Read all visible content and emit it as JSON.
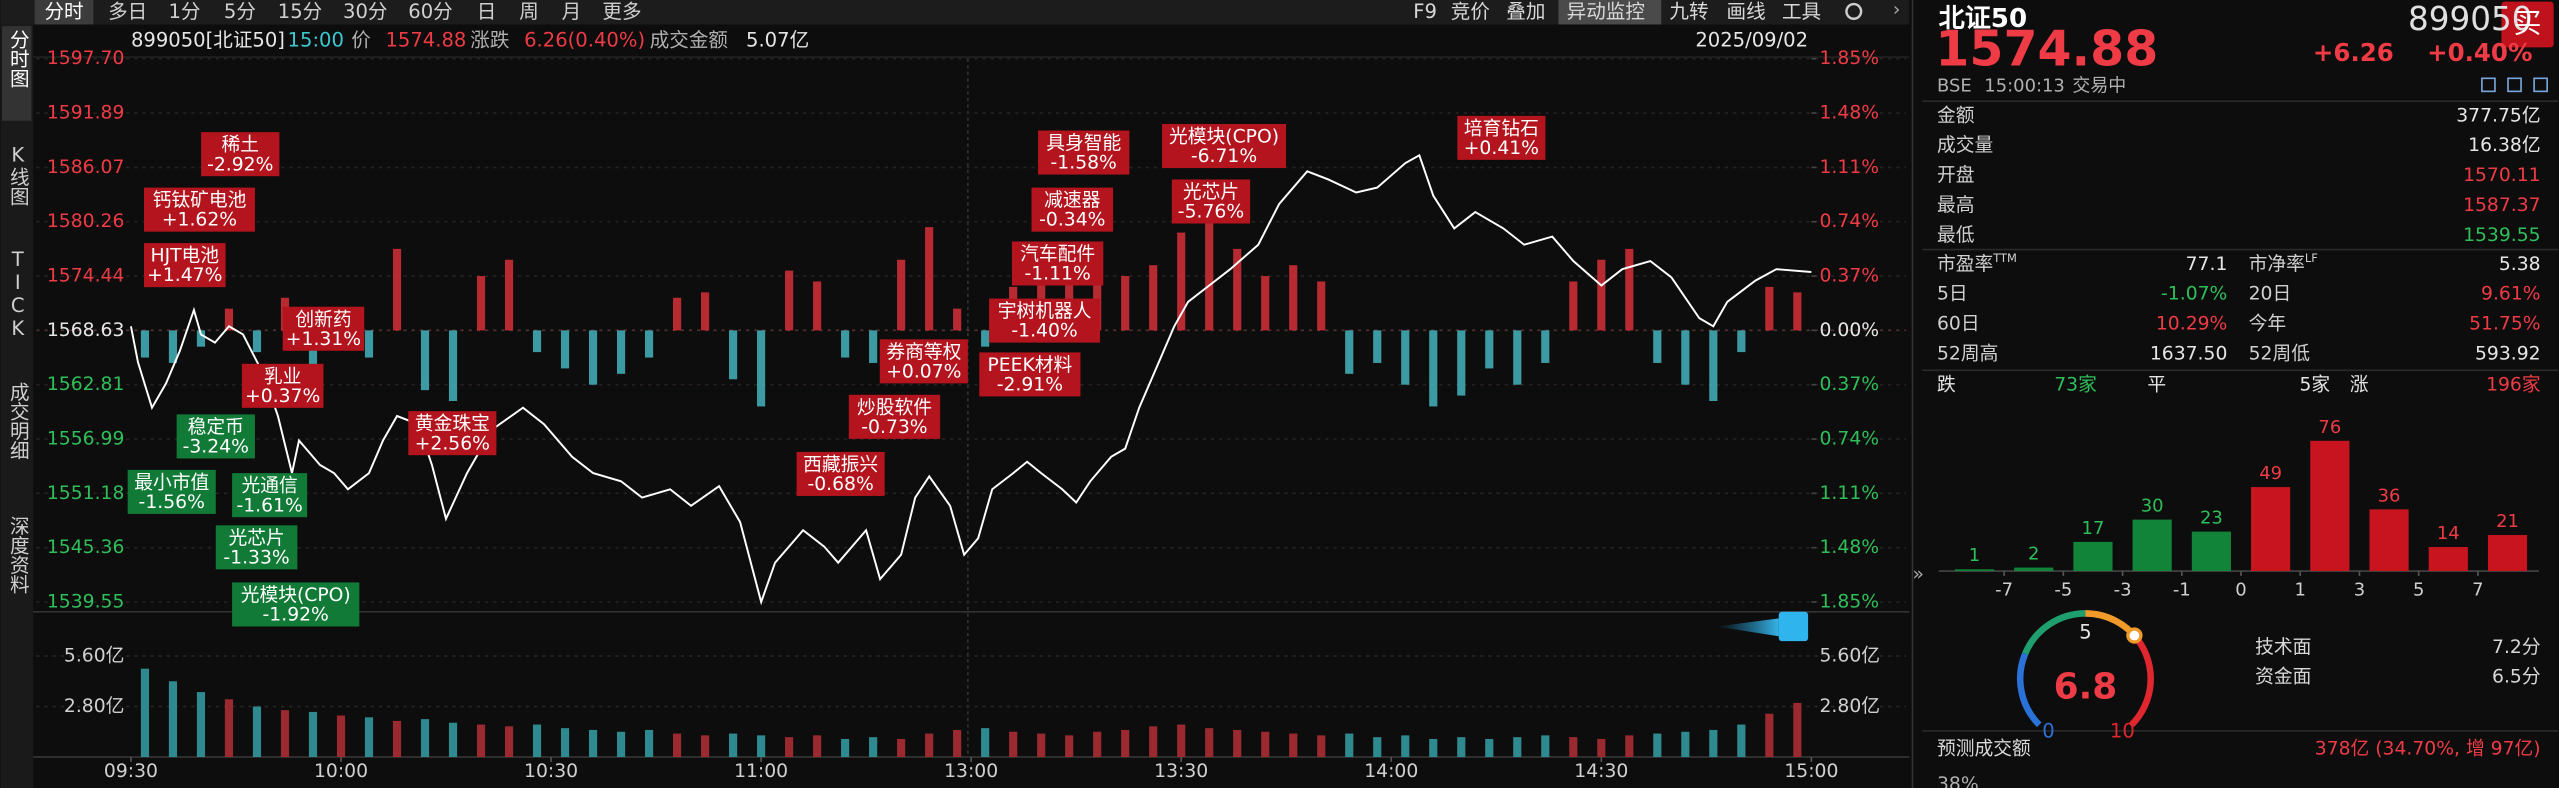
{
  "toolbar": {
    "tabs": [
      "分时",
      "多日",
      "1分",
      "5分",
      "15分",
      "30分",
      "60分",
      "日",
      "周",
      "月",
      "更多"
    ],
    "tools": [
      "F9",
      "竞价",
      "叠加",
      "异动监控",
      "九转",
      "画线",
      "工具"
    ]
  },
  "sidebar": [
    "分时图",
    "K线图",
    "TICK",
    "成交明细",
    "深度资料"
  ],
  "info_bar": {
    "code": "899050[北证50]",
    "time": "15:00",
    "price_label": "价",
    "price": "1574.88",
    "change_label": "涨跌",
    "change": "6.26(0.40%)",
    "amount_label": "成交金额",
    "amount": "5.07亿",
    "date": "2025/09/02"
  },
  "chart": {
    "type": "line",
    "xlim": [
      0,
      240
    ],
    "xticks": [
      {
        "value": 0,
        "label": "09:30"
      },
      {
        "value": 30,
        "label": "10:00"
      },
      {
        "value": 60,
        "label": "10:30"
      },
      {
        "value": 90,
        "label": "11:00"
      },
      {
        "value": 120,
        "label": "13:00"
      },
      {
        "value": 150,
        "label": "13:30"
      },
      {
        "value": 180,
        "label": "14:00"
      },
      {
        "value": 210,
        "label": "14:30"
      },
      {
        "value": 240,
        "label": "15:00"
      }
    ],
    "ylim": [
      1539.55,
      1597.7
    ],
    "yticks": [
      {
        "value": 1597.7,
        "label": "1597.70"
      },
      1591.89,
      1586.07,
      1580.26,
      1574.44,
      1568.63,
      1562.81,
      1556.99,
      1551.18,
      1545.36,
      1539.55
    ],
    "y2lim": [
      -1.85,
      1.85
    ],
    "y2ticks": [
      {
        "value": 1.85,
        "label": "1.85%"
      },
      {
        "value": 1.48,
        "label": "1.48%"
      },
      {
        "value": 1.11,
        "label": "1.11%"
      },
      {
        "value": 0.74,
        "label": "0.74%"
      },
      {
        "value": 0.37,
        "label": "0.37%"
      },
      {
        "value": 0,
        "label": "0.00%"
      },
      {
        "value": -0.37,
        "label": "0.37%"
      },
      {
        "value": -0.74,
        "label": "0.74%"
      },
      {
        "value": -1.11,
        "label": "1.11%"
      },
      {
        "value": -1.48,
        "label": "1.48%"
      },
      {
        "value": -1.85,
        "label": "1.85%"
      }
    ],
    "grid": true,
    "series": [
      {
        "color": "#ffffff",
        "x": [
          0,
          1,
          3,
          5,
          7,
          9,
          10,
          12,
          14,
          16,
          19,
          21,
          23,
          24,
          27,
          29,
          31,
          34,
          36,
          38,
          41,
          43,
          45,
          48,
          50,
          52,
          56,
          59,
          63,
          66,
          70,
          73,
          77,
          80,
          84,
          87,
          90,
          92,
          96,
          99,
          101,
          105,
          107,
          110,
          112,
          114,
          117,
          119,
          121,
          123,
          126,
          128,
          130,
          133,
          135,
          137,
          140,
          142,
          144,
          147,
          149,
          151,
          154,
          157,
          161,
          164,
          168,
          171,
          175,
          178,
          182,
          184,
          186,
          189,
          192,
          196,
          199,
          203,
          206,
          210,
          213,
          217,
          220,
          224,
          226,
          228,
          232,
          235,
          240
        ],
        "values": [
          1569.07,
          1565.22,
          1560.34,
          1562.95,
          1566.45,
          1570.81,
          1568.19,
          1567.32,
          1569.07,
          1568.19,
          1563.83,
          1559.46,
          1553.35,
          1556.84,
          1554.22,
          1553.35,
          1551.61,
          1553.35,
          1556.84,
          1559.46,
          1558.59,
          1554.22,
          1548.46,
          1553.35,
          1555.97,
          1558.24,
          1560.34,
          1558.59,
          1555.1,
          1553.35,
          1552.48,
          1550.73,
          1551.61,
          1549.86,
          1551.95,
          1548.11,
          1539.55,
          1543.75,
          1547.24,
          1545.49,
          1543.75,
          1547.24,
          1542.0,
          1544.62,
          1550.73,
          1553.0,
          1549.86,
          1544.62,
          1546.37,
          1551.61,
          1553.35,
          1554.57,
          1553.35,
          1551.61,
          1550.21,
          1552.48,
          1555.1,
          1555.97,
          1560.34,
          1565.57,
          1569.07,
          1571.68,
          1573.43,
          1575.18,
          1577.8,
          1582.16,
          1585.65,
          1584.78,
          1583.38,
          1583.91,
          1586.53,
          1587.37,
          1583.03,
          1579.54,
          1581.29,
          1579.54,
          1577.8,
          1578.67,
          1576.05,
          1573.43,
          1575.18,
          1576.05,
          1574.3,
          1569.94,
          1569.07,
          1571.68,
          1573.95,
          1575.18,
          1574.88
        ]
      }
    ],
    "breadth": {
      "ylim": [
        -100,
        100
      ],
      "up_color": "#d6303a",
      "down_color": "#45b5bd",
      "values": [
        -10,
        -12,
        -6,
        8,
        -8,
        12,
        -14,
        6,
        -10,
        30,
        -22,
        -26,
        20,
        26,
        -8,
        -14,
        -20,
        -16,
        -10,
        12,
        14,
        -18,
        -28,
        22,
        18,
        -10,
        -12,
        26,
        38,
        8,
        -6,
        16,
        22,
        26,
        18,
        20,
        24,
        36,
        42,
        30,
        20,
        24,
        18,
        -16,
        -12,
        -20,
        -28,
        -24,
        -14,
        -20,
        -12,
        18,
        26,
        30,
        -12,
        -20,
        -26,
        -8,
        16,
        14
      ]
    },
    "volume": {
      "ylim": [
        0,
        7.6
      ],
      "yticks": [
        {
          "value": 5.6,
          "label": "5.60亿"
        },
        {
          "value": 2.8,
          "label": "2.80亿"
        }
      ],
      "values": [
        4.9,
        4.2,
        3.6,
        3.2,
        2.8,
        2.6,
        2.5,
        2.3,
        2.2,
        2.0,
        2.1,
        1.9,
        1.8,
        1.7,
        1.8,
        1.6,
        1.5,
        1.4,
        1.5,
        1.3,
        1.2,
        1.3,
        1.2,
        1.1,
        1.2,
        1.0,
        1.1,
        1.0,
        1.3,
        1.5,
        1.6,
        1.4,
        1.3,
        1.2,
        1.4,
        1.5,
        1.7,
        1.8,
        1.6,
        1.5,
        1.4,
        1.3,
        1.2,
        1.3,
        1.1,
        1.2,
        1.0,
        1.1,
        1.0,
        1.1,
        1.2,
        1.1,
        1.0,
        1.2,
        1.3,
        1.4,
        1.5,
        1.8,
        2.4,
        3.0
      ]
    },
    "annotations": [
      {
        "name": "稀土",
        "change": "-2.92%",
        "color": "#b3141d"
      },
      {
        "name": "钙钛矿电池",
        "change": "+1.62%",
        "color": "#b3141d"
      },
      {
        "name": "HJT电池",
        "change": "+1.47%",
        "color": "#b3141d"
      },
      {
        "name": "创新药",
        "change": "+1.31%",
        "color": "#b3141d"
      },
      {
        "name": "乳业",
        "change": "+0.37%",
        "color": "#b3141d"
      },
      {
        "name": "稳定币",
        "change": "-3.24%",
        "color": "#117a36"
      },
      {
        "name": "最小市值",
        "change": "-1.56%",
        "color": "#117a36"
      },
      {
        "name": "光通信",
        "change": "-1.61%",
        "color": "#117a36"
      },
      {
        "name": "光芯片",
        "change": "-1.33%",
        "color": "#117a36"
      },
      {
        "name": "光模块(CPO)",
        "change": "-1.92%",
        "color": "#117a36"
      },
      {
        "name": "黄金珠宝",
        "change": "+2.56%",
        "color": "#b3141d"
      },
      {
        "name": "西藏振兴",
        "change": "-0.68%",
        "color": "#b3141d"
      },
      {
        "name": "炒股软件",
        "change": "-0.73%",
        "color": "#b3141d"
      },
      {
        "name": "券商等权",
        "change": "+0.07%",
        "color": "#b3141d"
      },
      {
        "name": "汽车配件",
        "change": "-1.11%",
        "color": "#b3141d"
      },
      {
        "name": "宇树机器人",
        "change": "-1.40%",
        "color": "#b3141d"
      },
      {
        "name": "PEEK材料",
        "change": "-2.91%",
        "color": "#b3141d"
      },
      {
        "name": "减速器",
        "change": "-0.34%",
        "color": "#b3141d"
      },
      {
        "name": "具身智能",
        "change": "-1.58%",
        "color": "#b3141d"
      },
      {
        "name": "光模块(CPO)",
        "change": "-6.71%",
        "color": "#b3141d"
      },
      {
        "name": "光芯片",
        "change": "-5.76%",
        "color": "#b3141d"
      },
      {
        "name": "培育钻石",
        "change": "+0.41%",
        "color": "#b3141d"
      }
    ]
  },
  "quote": {
    "name": "北证50",
    "code": "899050",
    "buy": "买",
    "price": "1574.88",
    "change": "+6.26",
    "pct": "+0.40%",
    "exchange": "BSE",
    "time": "15:00:13",
    "status": "交易中"
  },
  "stats": [
    {
      "label": "金额",
      "value": "377.75亿",
      "color": "#e6e6e6"
    },
    {
      "label": "成交量",
      "value": "16.38亿",
      "color": "#e6e6e6"
    },
    {
      "label": "开盘",
      "value": "1570.11",
      "color": "#ee3b45"
    },
    {
      "label": "最高",
      "value": "1587.37",
      "color": "#ee3b45"
    },
    {
      "label": "最低",
      "value": "1539.55",
      "color": "#2fbf5a"
    }
  ],
  "metrics": [
    {
      "label": "市盈率",
      "sup": "TTM",
      "value": "77.1",
      "color": "#e6e6e6"
    },
    {
      "label": "市净率",
      "sup": "LF",
      "value": "5.38",
      "color": "#e6e6e6"
    },
    {
      "label": "5日",
      "value": "-1.07%",
      "color": "#2fbf5a"
    },
    {
      "label": "20日",
      "value": "9.61%",
      "color": "#ee3b45"
    },
    {
      "label": "60日",
      "value": "10.29%",
      "color": "#ee3b45"
    },
    {
      "label": "今年",
      "value": "51.75%",
      "color": "#ee3b45"
    },
    {
      "label": "52周高",
      "value": "1637.50",
      "color": "#e6e6e6"
    },
    {
      "label": "52周低",
      "value": "593.92",
      "color": "#e6e6e6"
    }
  ],
  "breadth_summary": {
    "down_label": "跌",
    "down": "73家",
    "flat_label": "平",
    "flat": "5家",
    "up_label": "涨",
    "up": "196家"
  },
  "distribution": {
    "type": "bar",
    "categories": [
      null,
      null,
      null,
      null,
      null,
      null,
      null,
      null,
      null,
      null
    ],
    "values": [
      1,
      2,
      17,
      30,
      23,
      49,
      76,
      36,
      14,
      21
    ],
    "colors": [
      "#12843a",
      "#12843a",
      "#12843a",
      "#12843a",
      "#12843a",
      "#c8141f",
      "#c8141f",
      "#c8141f",
      "#c8141f",
      "#c8141f"
    ],
    "ylim": [
      0,
      80
    ],
    "boundary_ticks": [
      -7,
      -5,
      -3,
      -1,
      0,
      1,
      3,
      5,
      7
    ]
  },
  "score": {
    "value": 6.8,
    "min": 0,
    "max": 10,
    "ticks": [
      0,
      5,
      10
    ],
    "items": [
      {
        "label": "技术面",
        "value": "7.2分"
      },
      {
        "label": "资金面",
        "value": "6.5分"
      }
    ]
  },
  "forecast": {
    "label": "预测成交额",
    "value": "378亿 (34.70%, 增 97亿)",
    "next": "38%"
  }
}
